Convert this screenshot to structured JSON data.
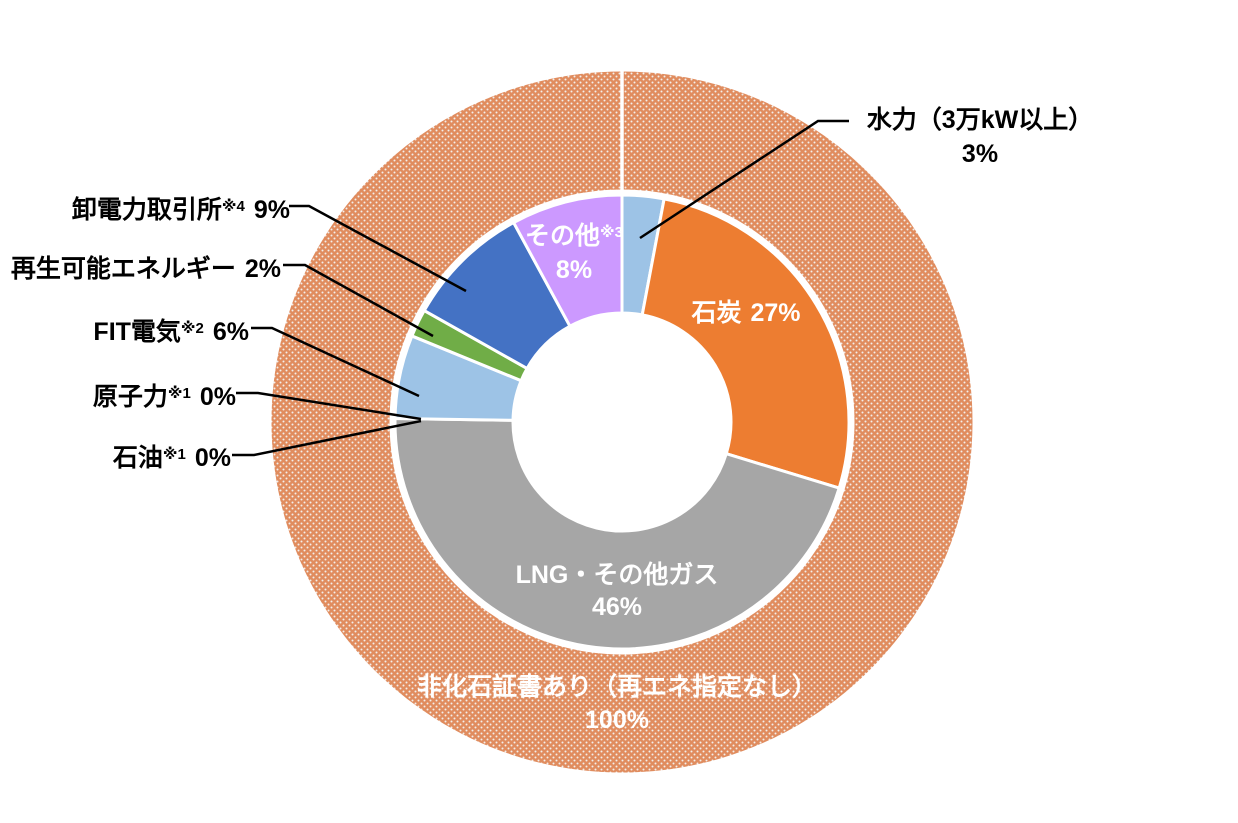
{
  "background_color": "#FFFFFF",
  "colors": {
    "leader_line": "#000000",
    "segment_border": "#FFFFFF",
    "callout_text": "#000000",
    "in_chart_text": "#FFFFFF",
    "outer_pattern_base": "#E08C5E",
    "outer_pattern_dot": "#F2EFEB"
  },
  "chart_data": {
    "type": "donut",
    "description": "Nested doughnut chart of electricity source composition; inner ring = generation sources, outer ring = non-fossil certificate coverage",
    "legend_position": "none",
    "start_angle_deg": 0,
    "direction": "clockwise",
    "inner_ring": {
      "segments": [
        {
          "key": "hydro",
          "label": "水力（3万kW以上）",
          "sup": "",
          "value": 3,
          "display": "3%",
          "color": "#9DC3E6"
        },
        {
          "key": "coal",
          "label": "石炭",
          "sup": "",
          "value": 27,
          "display": "27%",
          "color": "#ED7D31"
        },
        {
          "key": "lng",
          "label": "LNG・その他ガス",
          "sup": "",
          "value": 46,
          "display": "46%",
          "color": "#A6A6A6"
        },
        {
          "key": "oil",
          "label": "石油",
          "sup": "※1",
          "value": 0,
          "display": "0%",
          "color": null
        },
        {
          "key": "nuclear",
          "label": "原子力",
          "sup": "※1",
          "value": 0,
          "display": "0%",
          "color": null
        },
        {
          "key": "fit",
          "label": "FIT電気",
          "sup": "※2",
          "value": 6,
          "display": "6%",
          "color": "#9DC3E6"
        },
        {
          "key": "renewable",
          "label": "再生可能エネルギー",
          "sup": "",
          "value": 2,
          "display": "2%",
          "color": "#70AD47"
        },
        {
          "key": "jepx",
          "label": "卸電力取引所",
          "sup": "※4",
          "value": 9,
          "display": "9%",
          "color": "#4472C4"
        },
        {
          "key": "other",
          "label": "その他",
          "sup": "※3",
          "value": 8,
          "display": "8%",
          "color": "#CC99FF"
        }
      ]
    },
    "outer_ring": {
      "segments": [
        {
          "key": "nonfossil",
          "label": "非化石証書あり（再エネ指定なし）",
          "sup": "",
          "value": 100,
          "display": "100%",
          "color": "#E08C5E",
          "pattern": "white-dots"
        }
      ]
    }
  }
}
